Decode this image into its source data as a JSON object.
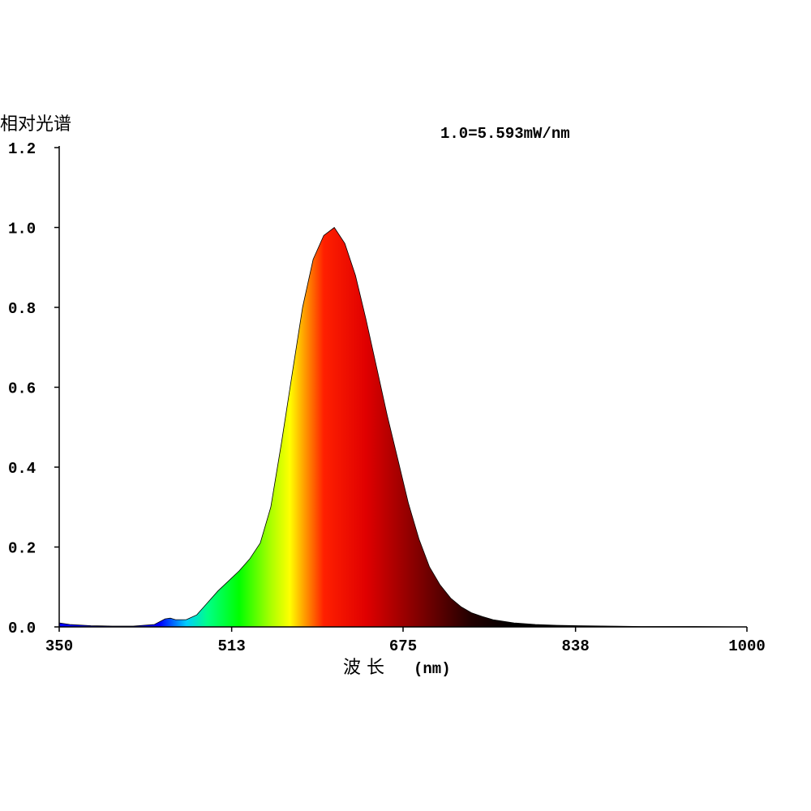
{
  "chart_data": {
    "type": "area",
    "ylabel": "相对光谱",
    "xlabel": "波 长",
    "xunit": "(nm)",
    "annotation": "1.0=5.593mW/nm",
    "xlim": [
      350,
      1000
    ],
    "ylim": [
      0,
      1.2
    ],
    "x_ticks": [
      "350",
      "513",
      "675",
      "838",
      "1000"
    ],
    "x_tick_values": [
      350,
      513,
      675,
      838,
      1000
    ],
    "y_ticks": [
      "0.0",
      "0.2",
      "0.4",
      "0.6",
      "0.8",
      "1.0",
      "1.2"
    ],
    "y_tick_values": [
      0.0,
      0.2,
      0.4,
      0.6,
      0.8,
      1.0,
      1.2
    ],
    "grid": false,
    "series": [
      {
        "x": [
          350,
          360,
          380,
          400,
          420,
          440,
          450,
          455,
          460,
          470,
          480,
          490,
          500,
          510,
          520,
          530,
          540,
          550,
          560,
          570,
          580,
          590,
          600,
          610,
          620,
          630,
          640,
          650,
          660,
          670,
          680,
          690,
          700,
          710,
          720,
          730,
          740,
          750,
          760,
          780,
          800,
          820,
          840,
          870,
          900,
          950,
          1000
        ],
        "y": [
          0.01,
          0.006,
          0.003,
          0.002,
          0.002,
          0.006,
          0.02,
          0.022,
          0.018,
          0.018,
          0.03,
          0.06,
          0.09,
          0.115,
          0.14,
          0.17,
          0.21,
          0.3,
          0.46,
          0.63,
          0.8,
          0.92,
          0.98,
          1.0,
          0.96,
          0.88,
          0.77,
          0.65,
          0.53,
          0.42,
          0.31,
          0.22,
          0.15,
          0.105,
          0.072,
          0.05,
          0.035,
          0.026,
          0.018,
          0.01,
          0.006,
          0.004,
          0.003,
          0.002,
          0.001,
          0.001,
          0.0
        ]
      }
    ],
    "colors": {
      "gradient_stops": [
        {
          "nm": 445,
          "color": "#0000ff"
        },
        {
          "nm": 470,
          "color": "#00ccff"
        },
        {
          "nm": 490,
          "color": "#00ff88"
        },
        {
          "nm": 520,
          "color": "#00ff00"
        },
        {
          "nm": 550,
          "color": "#aaff00"
        },
        {
          "nm": 568,
          "color": "#ffff00"
        },
        {
          "nm": 580,
          "color": "#ffaa00"
        },
        {
          "nm": 600,
          "color": "#ff2000"
        },
        {
          "nm": 640,
          "color": "#e00000"
        },
        {
          "nm": 690,
          "color": "#800000"
        },
        {
          "nm": 740,
          "color": "#200000"
        },
        {
          "nm": 780,
          "color": "#000000"
        }
      ]
    }
  }
}
